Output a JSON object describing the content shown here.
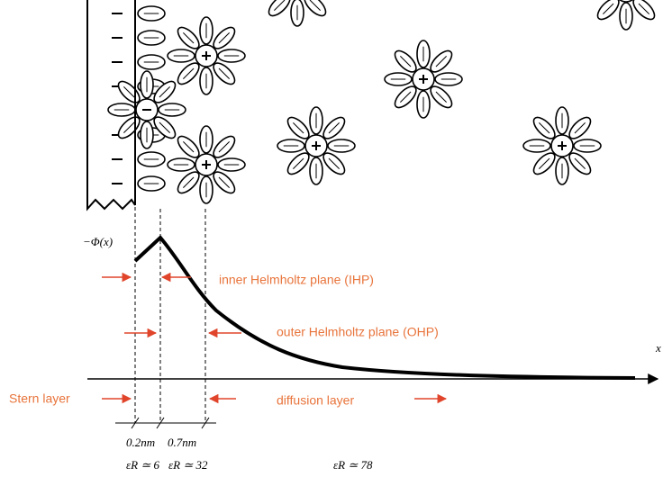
{
  "axis": {
    "potential_label": "−Φ(x)",
    "x_label": "x"
  },
  "planes": {
    "ihp": "inner Helmholtz plane (IHP)",
    "ohp": "outer Helmholtz plane (OHP)"
  },
  "layers": {
    "stern": "Stern layer",
    "diffusion": "diffusion layer"
  },
  "distances": [
    "0.2nm",
    "0.7nm"
  ],
  "permittivity": [
    "εR ≃ 6",
    "εR ≃ 32",
    "εR ≃ 78"
  ]
}
